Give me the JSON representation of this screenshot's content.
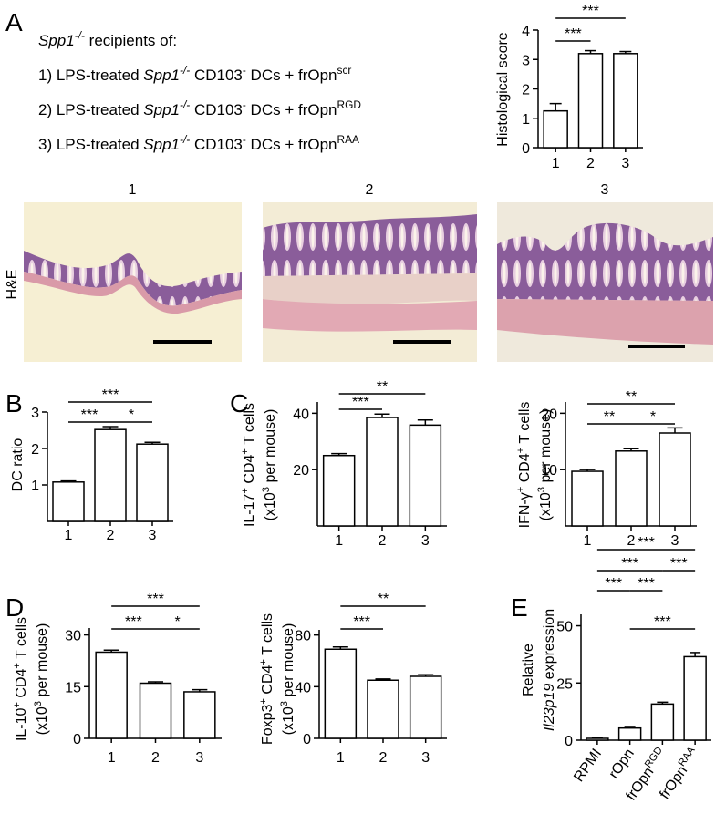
{
  "panel_labels": [
    "A",
    "B",
    "C",
    "D",
    "E"
  ],
  "legend": {
    "lines": [
      [
        {
          "text": "Spp1",
          "style": "italic"
        },
        {
          "text": "-/-",
          "style": "sup-italic"
        },
        {
          "text": " recipients of:"
        }
      ],
      [
        {
          "text": "1) LPS-treated "
        },
        {
          "text": "Spp1",
          "style": "italic"
        },
        {
          "text": "-/-",
          "style": "sup-italic"
        },
        {
          "text": " CD103"
        },
        {
          "text": "-",
          "style": "sup"
        },
        {
          "text": " DCs + frOpn"
        },
        {
          "text": "scr",
          "style": "sup"
        }
      ],
      [
        {
          "text": "2) LPS-treated "
        },
        {
          "text": "Spp1",
          "style": "italic"
        },
        {
          "text": "-/-",
          "style": "sup-italic"
        },
        {
          "text": " CD103"
        },
        {
          "text": "-",
          "style": "sup"
        },
        {
          "text": " DCs + frOpn"
        },
        {
          "text": "RGD",
          "style": "sup"
        }
      ],
      [
        {
          "text": "3) LPS-treated "
        },
        {
          "text": "Spp1",
          "style": "italic"
        },
        {
          "text": "-/-",
          "style": "sup-italic"
        },
        {
          "text": " CD103"
        },
        {
          "text": "-",
          "style": "sup"
        },
        {
          "text": " DCs + frOpn"
        },
        {
          "text": "RAA",
          "style": "sup"
        }
      ]
    ]
  },
  "histology": {
    "stain": "H&E",
    "images": [
      {
        "label": "1"
      },
      {
        "label": "2"
      },
      {
        "label": "3"
      }
    ]
  },
  "chart_data": [
    {
      "type": "bar",
      "ylabel": [
        [
          {
            "text": "Histological score"
          }
        ]
      ],
      "categories": [
        "1",
        "2",
        "3"
      ],
      "values": [
        1.25,
        3.2,
        3.2
      ],
      "errors": [
        0.25,
        0.1,
        0.07
      ],
      "ylim": [
        0,
        4
      ],
      "yticks": [
        0,
        1,
        2,
        3,
        4
      ],
      "color": "#ffffff",
      "significance": [
        {
          "pair": [
            0,
            1
          ],
          "label": "***"
        },
        {
          "pair": [
            0,
            2
          ],
          "label": "***"
        }
      ]
    },
    {
      "type": "bar",
      "ylabel": [
        [
          {
            "text": "DC ratio"
          }
        ]
      ],
      "categories": [
        "1",
        "2",
        "3"
      ],
      "values": [
        1.08,
        2.52,
        2.12
      ],
      "errors": [
        0.03,
        0.08,
        0.05
      ],
      "ylim": [
        0,
        3
      ],
      "yticks": [
        1,
        2,
        3
      ],
      "color": "#ffffff",
      "significance": [
        {
          "pair": [
            0,
            2
          ],
          "label": "***"
        },
        {
          "pair": [
            0,
            1
          ],
          "label": "***"
        },
        {
          "pair": [
            1,
            2
          ],
          "label": "*"
        }
      ]
    },
    {
      "type": "bar",
      "ylabel": [
        [
          {
            "text": "IL-17"
          },
          {
            "text": "+",
            "style": "sup"
          },
          {
            "text": " CD4"
          },
          {
            "text": "+",
            "style": "sup"
          },
          {
            "text": " T cells"
          }
        ],
        [
          {
            "text": "(x10"
          },
          {
            "text": "3",
            "style": "sup"
          },
          {
            "text": " per mouse)"
          }
        ]
      ],
      "categories": [
        "1",
        "2",
        "3"
      ],
      "values": [
        25,
        38.5,
        35.8
      ],
      "errors": [
        0.7,
        1.2,
        1.8
      ],
      "ylim": [
        0,
        44
      ],
      "yticks": [
        20,
        40
      ],
      "color": "#ffffff",
      "significance": [
        {
          "pair": [
            0,
            1
          ],
          "label": "***"
        },
        {
          "pair": [
            0,
            2
          ],
          "label": "**"
        }
      ]
    },
    {
      "type": "bar",
      "ylabel": [
        [
          {
            "text": "IFN-γ"
          },
          {
            "text": "+",
            "style": "sup"
          },
          {
            "text": " CD4"
          },
          {
            "text": "+",
            "style": "sup"
          },
          {
            "text": " T cells"
          }
        ],
        [
          {
            "text": "(x10"
          },
          {
            "text": "3",
            "style": "sup"
          },
          {
            "text": " per mouse)"
          }
        ]
      ],
      "categories": [
        "1",
        "2",
        "3"
      ],
      "values": [
        9.7,
        13.3,
        16.5
      ],
      "errors": [
        0.3,
        0.4,
        0.9
      ],
      "ylim": [
        0,
        22
      ],
      "yticks": [
        10,
        20
      ],
      "color": "#ffffff",
      "significance": [
        {
          "pair": [
            0,
            2
          ],
          "label": "**"
        },
        {
          "pair": [
            0,
            1
          ],
          "label": "**"
        },
        {
          "pair": [
            1,
            2
          ],
          "label": "*"
        }
      ]
    },
    {
      "type": "bar",
      "ylabel": [
        [
          {
            "text": "IL-10"
          },
          {
            "text": "+",
            "style": "sup"
          },
          {
            "text": " CD4"
          },
          {
            "text": "+",
            "style": "sup"
          },
          {
            "text": " T cells"
          }
        ],
        [
          {
            "text": "(x10"
          },
          {
            "text": "3",
            "style": "sup"
          },
          {
            "text": " per mouse)"
          }
        ]
      ],
      "categories": [
        "1",
        "2",
        "3"
      ],
      "values": [
        25,
        16,
        13.5
      ],
      "errors": [
        0.6,
        0.4,
        0.6
      ],
      "ylim": [
        0,
        32
      ],
      "yticks": [
        0,
        15,
        30
      ],
      "color": "#ffffff",
      "significance": [
        {
          "pair": [
            0,
            2
          ],
          "label": "***"
        },
        {
          "pair": [
            0,
            1
          ],
          "label": "***"
        },
        {
          "pair": [
            1,
            2
          ],
          "label": "*"
        }
      ]
    },
    {
      "type": "bar",
      "ylabel": [
        [
          {
            "text": "Foxp3"
          },
          {
            "text": "+",
            "style": "sup"
          },
          {
            "text": " CD4"
          },
          {
            "text": "+",
            "style": "sup"
          },
          {
            "text": " T cells"
          }
        ],
        [
          {
            "text": "(x10"
          },
          {
            "text": "3",
            "style": "sup"
          },
          {
            "text": " per mouse)"
          }
        ]
      ],
      "categories": [
        "1",
        "2",
        "3"
      ],
      "values": [
        69,
        45,
        48
      ],
      "errors": [
        1.8,
        1,
        1.2
      ],
      "ylim": [
        0,
        84
      ],
      "yticks": [
        0,
        40,
        80
      ],
      "color": "#ffffff",
      "significance": [
        {
          "pair": [
            0,
            2
          ],
          "label": "**"
        },
        {
          "pair": [
            0,
            1
          ],
          "label": "***"
        }
      ]
    },
    {
      "type": "bar",
      "ylabel": [
        [
          {
            "text": "Relative"
          }
        ],
        [
          {
            "text": "Il23p19",
            "style": "italic"
          },
          {
            "text": " expression"
          }
        ]
      ],
      "categories": [
        "RPMI",
        "rOpn",
        "frOpn",
        "frOpn"
      ],
      "category_superscripts": [
        null,
        null,
        "RGD",
        "RAA"
      ],
      "values": [
        0.8,
        5.3,
        15.8,
        36.5
      ],
      "errors": [
        0.2,
        0.3,
        0.8,
        1.8
      ],
      "ylim": [
        0,
        55
      ],
      "yticks": [
        0,
        25,
        50
      ],
      "color": "#ffffff",
      "significance": [
        {
          "pair": [
            0,
            3
          ],
          "label": "***"
        },
        {
          "pair": [
            0,
            2
          ],
          "label": "***"
        },
        {
          "pair": [
            2,
            3
          ],
          "label": "***"
        },
        {
          "pair": [
            0,
            1
          ],
          "label": "***"
        },
        {
          "pair": [
            1,
            2
          ],
          "label": "***"
        },
        {
          "pair": [
            1,
            3
          ],
          "label": "***"
        }
      ]
    }
  ]
}
